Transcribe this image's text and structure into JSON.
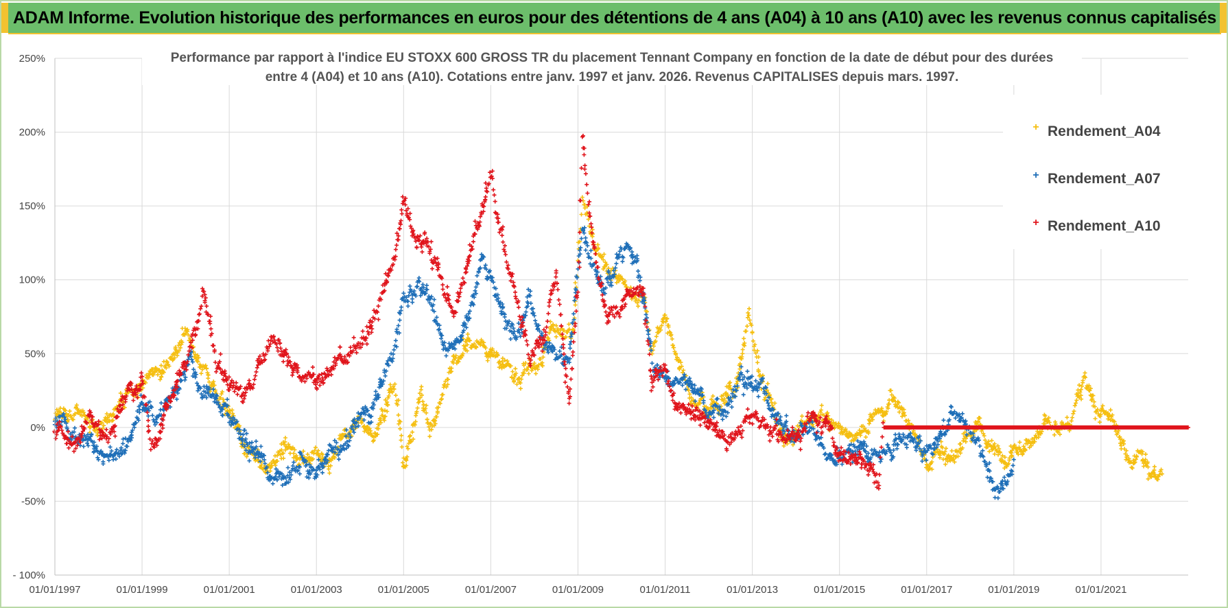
{
  "banner": {
    "title": "ADAM Informe. Evolution historique des performances en euros pour des détentions de 4 ans (A04) à 10 ans (A10) avec les revenus connus capitalisés"
  },
  "colors": {
    "banner_bg": "#6cbe6b",
    "banner_accent": "#f2c230",
    "A04": "#f5bf12",
    "A07": "#1f6fb8",
    "A10": "#e0151c",
    "grid": "#d9d9d9"
  },
  "chart_data": {
    "type": "scatter",
    "title_line1": "Performance par rapport à l'indice EU STOXX 600 GROSS TR  du placement Tennant Company en fonction de la date de début pour des durées",
    "title_line2": "entre 4 (A04) et 10 ans (A10). Cotations entre janv. 1997 et janv. 2026. Revenus CAPITALISES depuis mars. 1997.",
    "xlabel": "",
    "ylabel": "",
    "xlim": [
      1997.0,
      2023.0
    ],
    "ylim": [
      -100,
      250
    ],
    "y_ticks": [
      {
        "value": 250,
        "label": "250%"
      },
      {
        "value": 200,
        "label": "200%"
      },
      {
        "value": 150,
        "label": "150%"
      },
      {
        "value": 100,
        "label": "100%"
      },
      {
        "value": 50,
        "label": "50%"
      },
      {
        "value": 0,
        "label": "0%"
      },
      {
        "value": -50,
        "label": "-50%"
      },
      {
        "value": -100,
        "label": "- 100%"
      }
    ],
    "x_ticks": [
      {
        "value": 1997,
        "label": "01/01/1997"
      },
      {
        "value": 1999,
        "label": "01/01/1999"
      },
      {
        "value": 2001,
        "label": "01/01/2001"
      },
      {
        "value": 2003,
        "label": "01/01/2003"
      },
      {
        "value": 2005,
        "label": "01/01/2005"
      },
      {
        "value": 2007,
        "label": "01/01/2007"
      },
      {
        "value": 2009,
        "label": "01/01/2009"
      },
      {
        "value": 2011,
        "label": "01/01/2011"
      },
      {
        "value": 2013,
        "label": "01/01/2013"
      },
      {
        "value": 2015,
        "label": "01/01/2015"
      },
      {
        "value": 2017,
        "label": "01/01/2017"
      },
      {
        "value": 2019,
        "label": "01/01/2019"
      },
      {
        "value": 2021,
        "label": "01/01/2021"
      }
    ],
    "grid": true,
    "legend_position": "top-right",
    "series": [
      {
        "name": "Rendement_A04",
        "key": "A04",
        "anchors": [
          [
            1997.0,
            5
          ],
          [
            1997.5,
            10
          ],
          [
            1998.0,
            0
          ],
          [
            1998.5,
            15
          ],
          [
            1999.0,
            30
          ],
          [
            1999.5,
            40
          ],
          [
            2000.0,
            60
          ],
          [
            2000.3,
            45
          ],
          [
            2000.6,
            30
          ],
          [
            2001.0,
            15
          ],
          [
            2001.3,
            -10
          ],
          [
            2001.6,
            -25
          ],
          [
            2002.0,
            -25
          ],
          [
            2002.3,
            -10
          ],
          [
            2002.6,
            -25
          ],
          [
            2003.0,
            -20
          ],
          [
            2003.3,
            -20
          ],
          [
            2003.6,
            -5
          ],
          [
            2004.0,
            5
          ],
          [
            2004.3,
            -10
          ],
          [
            2004.6,
            15
          ],
          [
            2004.8,
            30
          ],
          [
            2005.0,
            -30
          ],
          [
            2005.2,
            0
          ],
          [
            2005.4,
            20
          ],
          [
            2005.6,
            -5
          ],
          [
            2005.8,
            10
          ],
          [
            2006.0,
            30
          ],
          [
            2006.3,
            50
          ],
          [
            2006.6,
            60
          ],
          [
            2007.0,
            50
          ],
          [
            2007.3,
            40
          ],
          [
            2007.6,
            30
          ],
          [
            2008.0,
            40
          ],
          [
            2008.3,
            60
          ],
          [
            2008.6,
            70
          ],
          [
            2008.9,
            60
          ],
          [
            2009.0,
            110
          ],
          [
            2009.1,
            150
          ],
          [
            2009.3,
            130
          ],
          [
            2009.6,
            110
          ],
          [
            2009.9,
            100
          ],
          [
            2010.2,
            90
          ],
          [
            2010.5,
            90
          ],
          [
            2010.7,
            50
          ],
          [
            2011.0,
            70
          ],
          [
            2011.3,
            50
          ],
          [
            2011.6,
            20
          ],
          [
            2012.0,
            10
          ],
          [
            2012.3,
            20
          ],
          [
            2012.6,
            25
          ],
          [
            2012.9,
            80
          ],
          [
            2013.2,
            30
          ],
          [
            2013.5,
            10
          ],
          [
            2013.8,
            -10
          ],
          [
            2014.2,
            0
          ],
          [
            2014.6,
            10
          ],
          [
            2014.9,
            0
          ],
          [
            2015.2,
            -10
          ],
          [
            2015.6,
            0
          ],
          [
            2015.9,
            10
          ],
          [
            2016.2,
            25
          ],
          [
            2016.5,
            10
          ],
          [
            2016.8,
            -10
          ],
          [
            2017.0,
            -25
          ],
          [
            2017.3,
            -15
          ],
          [
            2017.6,
            -20
          ],
          [
            2017.9,
            -10
          ],
          [
            2018.2,
            0
          ],
          [
            2018.5,
            -10
          ],
          [
            2018.8,
            -20
          ],
          [
            2019.1,
            -15
          ],
          [
            2019.4,
            -10
          ],
          [
            2019.7,
            0
          ],
          [
            2020.0,
            0
          ],
          [
            2020.3,
            5
          ],
          [
            2020.6,
            30
          ],
          [
            2020.9,
            10
          ],
          [
            2021.2,
            5
          ],
          [
            2021.5,
            -10
          ],
          [
            2021.7,
            -25
          ],
          [
            2021.9,
            -15
          ],
          [
            2022.1,
            -30
          ],
          [
            2022.4,
            -30
          ]
        ],
        "noise": 6
      },
      {
        "name": "Rendement_A07",
        "key": "A07",
        "anchors": [
          [
            1997.0,
            5
          ],
          [
            1997.4,
            0
          ],
          [
            1997.8,
            -15
          ],
          [
            1998.2,
            -20
          ],
          [
            1998.6,
            -15
          ],
          [
            1999.0,
            15
          ],
          [
            1999.4,
            10
          ],
          [
            1999.8,
            20
          ],
          [
            2000.1,
            40
          ],
          [
            2000.4,
            20
          ],
          [
            2000.8,
            15
          ],
          [
            2001.0,
            10
          ],
          [
            2001.4,
            -10
          ],
          [
            2001.8,
            -20
          ],
          [
            2002.0,
            -35
          ],
          [
            2002.3,
            -40
          ],
          [
            2002.7,
            -15
          ],
          [
            2003.0,
            -30
          ],
          [
            2003.3,
            -20
          ],
          [
            2003.7,
            -10
          ],
          [
            2004.0,
            10
          ],
          [
            2004.4,
            20
          ],
          [
            2004.8,
            60
          ],
          [
            2005.0,
            90
          ],
          [
            2005.3,
            100
          ],
          [
            2005.6,
            90
          ],
          [
            2005.9,
            60
          ],
          [
            2006.2,
            50
          ],
          [
            2006.5,
            80
          ],
          [
            2006.8,
            110
          ],
          [
            2007.0,
            100
          ],
          [
            2007.3,
            80
          ],
          [
            2007.6,
            60
          ],
          [
            2007.9,
            80
          ],
          [
            2008.2,
            60
          ],
          [
            2008.5,
            50
          ],
          [
            2008.8,
            40
          ],
          [
            2009.0,
            100
          ],
          [
            2009.1,
            130
          ],
          [
            2009.3,
            110
          ],
          [
            2009.6,
            90
          ],
          [
            2009.9,
            110
          ],
          [
            2010.2,
            120
          ],
          [
            2010.5,
            90
          ],
          [
            2010.7,
            40
          ],
          [
            2011.0,
            30
          ],
          [
            2011.3,
            30
          ],
          [
            2011.6,
            30
          ],
          [
            2012.0,
            10
          ],
          [
            2012.3,
            10
          ],
          [
            2012.6,
            20
          ],
          [
            2012.9,
            35
          ],
          [
            2013.2,
            30
          ],
          [
            2013.5,
            10
          ],
          [
            2013.8,
            0
          ],
          [
            2014.1,
            0
          ],
          [
            2014.5,
            -5
          ],
          [
            2014.9,
            -20
          ],
          [
            2015.2,
            -20
          ],
          [
            2015.5,
            -10
          ],
          [
            2015.8,
            -20
          ],
          [
            2016.1,
            -15
          ],
          [
            2016.4,
            -5
          ],
          [
            2016.7,
            -10
          ],
          [
            2017.0,
            -15
          ],
          [
            2017.3,
            0
          ],
          [
            2017.6,
            5
          ],
          [
            2017.9,
            0
          ],
          [
            2018.2,
            -10
          ],
          [
            2018.5,
            -40
          ],
          [
            2018.8,
            -35
          ],
          [
            2019.0,
            -30
          ]
        ],
        "noise": 7
      },
      {
        "name": "Rendement_A10",
        "key": "A10",
        "anchors": [
          [
            1997.0,
            -5
          ],
          [
            1997.4,
            -5
          ],
          [
            1997.8,
            5
          ],
          [
            1998.2,
            -10
          ],
          [
            1998.6,
            20
          ],
          [
            1999.0,
            30
          ],
          [
            1999.2,
            -10
          ],
          [
            1999.4,
            0
          ],
          [
            1999.8,
            30
          ],
          [
            2000.1,
            50
          ],
          [
            2000.4,
            95
          ],
          [
            2000.7,
            40
          ],
          [
            2001.0,
            30
          ],
          [
            2001.3,
            20
          ],
          [
            2001.7,
            40
          ],
          [
            2002.0,
            60
          ],
          [
            2002.3,
            50
          ],
          [
            2002.7,
            40
          ],
          [
            2003.0,
            30
          ],
          [
            2003.3,
            40
          ],
          [
            2003.7,
            50
          ],
          [
            2004.0,
            60
          ],
          [
            2004.4,
            80
          ],
          [
            2004.8,
            120
          ],
          [
            2005.0,
            150
          ],
          [
            2005.3,
            130
          ],
          [
            2005.6,
            120
          ],
          [
            2005.9,
            100
          ],
          [
            2006.2,
            80
          ],
          [
            2006.5,
            110
          ],
          [
            2006.8,
            150
          ],
          [
            2007.0,
            170
          ],
          [
            2007.3,
            120
          ],
          [
            2007.6,
            90
          ],
          [
            2007.9,
            50
          ],
          [
            2008.2,
            60
          ],
          [
            2008.5,
            100
          ],
          [
            2008.8,
            20
          ],
          [
            2009.0,
            90
          ],
          [
            2009.1,
            200
          ],
          [
            2009.3,
            130
          ],
          [
            2009.6,
            80
          ],
          [
            2009.9,
            80
          ],
          [
            2010.2,
            90
          ],
          [
            2010.5,
            90
          ],
          [
            2010.7,
            30
          ],
          [
            2011.0,
            40
          ],
          [
            2011.3,
            10
          ],
          [
            2011.6,
            10
          ],
          [
            2012.0,
            0
          ],
          [
            2012.3,
            -10
          ],
          [
            2012.6,
            -10
          ],
          [
            2012.9,
            5
          ],
          [
            2013.2,
            0
          ],
          [
            2013.5,
            0
          ],
          [
            2013.8,
            -10
          ],
          [
            2014.1,
            -5
          ],
          [
            2014.4,
            10
          ],
          [
            2014.7,
            0
          ],
          [
            2015.0,
            -20
          ],
          [
            2015.3,
            -20
          ],
          [
            2015.6,
            -25
          ],
          [
            2015.9,
            -35
          ],
          [
            2016.0,
            0
          ],
          [
            2023.0,
            0
          ]
        ],
        "noise": 7
      }
    ]
  }
}
